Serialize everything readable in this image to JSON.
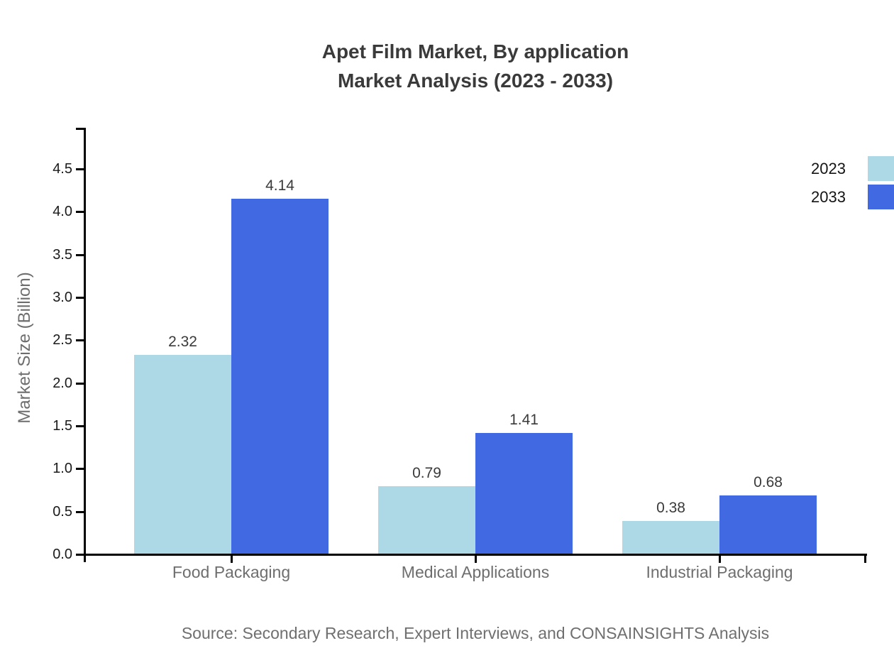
{
  "title": {
    "line1": "Apet Film Market, By application",
    "line2": "Market Analysis (2023 - 2033)"
  },
  "source": "Source: Secondary Research, Expert Interviews, and CONSAINSIGHTS Analysis",
  "legend": [
    {
      "label": "2023",
      "color": "#ADD8E6"
    },
    {
      "label": "2033",
      "color": "#4169E1"
    }
  ],
  "chart_data": {
    "type": "bar",
    "title": "Apet Film Market, By application Market Analysis (2023 - 2033)",
    "categories": [
      "Food Packaging",
      "Medical Applications",
      "Industrial Packaging"
    ],
    "series": [
      {
        "name": "2023",
        "color": "#ADD8E6",
        "values": [
          2.32,
          0.79,
          0.38
        ]
      },
      {
        "name": "2033",
        "color": "#4169E1",
        "values": [
          4.14,
          1.41,
          0.68
        ]
      }
    ],
    "xlabel": "",
    "ylabel": "Market Size (Billion)",
    "yticks": [
      0.0,
      0.5,
      1.0,
      1.5,
      2.0,
      2.5,
      3.0,
      3.5,
      4.0,
      4.5
    ],
    "ylim": [
      0,
      5.0
    ],
    "grid": false,
    "legend_position": "upper-right",
    "value_labels": true,
    "value_label_format": "2-decimals"
  }
}
